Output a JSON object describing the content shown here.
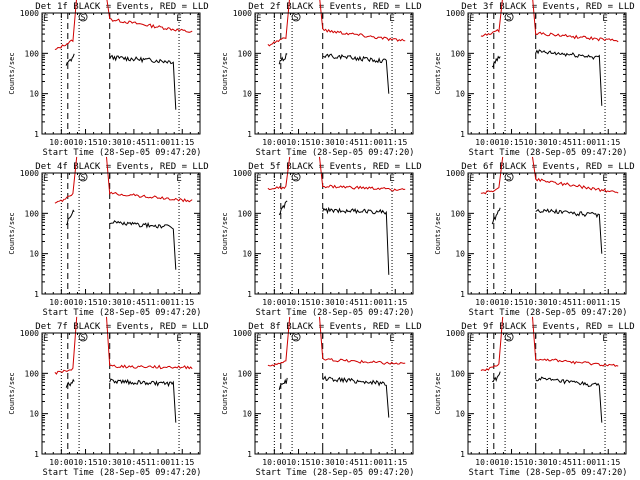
{
  "title_prefix": "Det",
  "title_suffix": "BLACK = Events, RED = LLD",
  "xlabel": "Start Time (28-Sep-05 09:47:20)",
  "ylabel": "Counts/sec",
  "x_ticks": [
    "10:00",
    "10:15",
    "10:30",
    "10:45",
    "11:00",
    "11:15"
  ],
  "y_ticks": [
    "1",
    "10",
    "100",
    "1000"
  ],
  "markers": {
    "S": "S",
    "E": "E"
  },
  "colors": {
    "events": "#000000",
    "lld": "#d00000",
    "axes": "#000000"
  },
  "chart_data": [
    {
      "type": "line",
      "title": "Det 1f BLACK = Events, RED = LLD",
      "detector": "1f",
      "xlim_min": [
        -12,
        86
      ],
      "ylim": [
        1,
        1000
      ],
      "yscale": "log",
      "pre_markers": [
        {
          "label": "E",
          "x": -12
        },
        {
          "label": "S",
          "x": 11
        }
      ],
      "post_markers": [
        {
          "label": "E",
          "x": 73
        }
      ],
      "dotted_lines_min": [
        0,
        11,
        73
      ],
      "dashed_lines_min": [
        4,
        30
      ],
      "lld": {
        "pre_start": 120,
        "pre_end": 220,
        "post_start": 700,
        "post_end": 330
      },
      "events": {
        "pre_start": 50,
        "pre_end": 95,
        "post_start": 80,
        "post_end": 62,
        "end_drop": 4
      },
      "series": [
        {
          "name": "Events",
          "color": "black"
        },
        {
          "name": "LLD",
          "color": "red"
        }
      ]
    },
    {
      "type": "line",
      "title": "Det 2f BLACK = Events, RED = LLD",
      "detector": "2f",
      "xlim_min": [
        -12,
        86
      ],
      "ylim": [
        1,
        1000
      ],
      "yscale": "log",
      "pre_markers": [
        {
          "label": "E",
          "x": -12
        },
        {
          "label": "S",
          "x": 11
        }
      ],
      "post_markers": [
        {
          "label": "E",
          "x": 73
        }
      ],
      "dotted_lines_min": [
        0,
        11,
        73
      ],
      "dashed_lines_min": [
        4,
        30
      ],
      "lld": {
        "pre_start": 160,
        "pre_end": 260,
        "post_start": 380,
        "post_end": 200
      },
      "events": {
        "pre_start": 55,
        "pre_end": 100,
        "post_start": 90,
        "post_end": 65,
        "end_drop": 10
      },
      "series": [
        {
          "name": "Events",
          "color": "black"
        },
        {
          "name": "LLD",
          "color": "red"
        }
      ]
    },
    {
      "type": "line",
      "title": "Det 3f BLACK = Events, RED = LLD",
      "detector": "3f",
      "xlim_min": [
        -12,
        86
      ],
      "ylim": [
        1,
        1000
      ],
      "yscale": "log",
      "pre_markers": [
        {
          "label": "E",
          "x": -12
        },
        {
          "label": "S",
          "x": 11
        }
      ],
      "post_markers": [
        {
          "label": "E",
          "x": 73
        }
      ],
      "dotted_lines_min": [
        0,
        11,
        73
      ],
      "dashed_lines_min": [
        4,
        30
      ],
      "lld": {
        "pre_start": 260,
        "pre_end": 380,
        "post_start": 320,
        "post_end": 200
      },
      "events": {
        "pre_start": 50,
        "pre_end": 95,
        "post_start": 110,
        "post_end": 80,
        "end_drop": 5
      },
      "series": [
        {
          "name": "Events",
          "color": "black"
        },
        {
          "name": "LLD",
          "color": "red"
        }
      ]
    },
    {
      "type": "line",
      "title": "Det 4f BLACK = Events, RED = LLD",
      "detector": "4f",
      "xlim_min": [
        -12,
        86
      ],
      "ylim": [
        1,
        1000
      ],
      "yscale": "log",
      "pre_markers": [
        {
          "label": "E",
          "x": -12
        },
        {
          "label": "S",
          "x": 11
        }
      ],
      "post_markers": [
        {
          "label": "E",
          "x": 73
        }
      ],
      "dotted_lines_min": [
        0,
        11,
        73
      ],
      "dashed_lines_min": [
        4,
        30
      ],
      "lld": {
        "pre_start": 170,
        "pre_end": 300,
        "post_start": 320,
        "post_end": 200
      },
      "events": {
        "pre_start": 55,
        "pre_end": 140,
        "post_start": 60,
        "post_end": 45,
        "end_drop": 4
      },
      "series": [
        {
          "name": "Events",
          "color": "black"
        },
        {
          "name": "LLD",
          "color": "red"
        }
      ]
    },
    {
      "type": "line",
      "title": "Det 5f BLACK = Events, RED = LLD",
      "detector": "5f",
      "xlim_min": [
        -12,
        86
      ],
      "ylim": [
        1,
        1000
      ],
      "yscale": "log",
      "pre_markers": [
        {
          "label": "E",
          "x": -12
        },
        {
          "label": "S",
          "x": 11
        }
      ],
      "post_markers": [
        {
          "label": "E",
          "x": 73
        }
      ],
      "dotted_lines_min": [
        0,
        11,
        73
      ],
      "dashed_lines_min": [
        4,
        30
      ],
      "lld": {
        "pre_start": 400,
        "pre_end": 450,
        "post_start": 470,
        "post_end": 380
      },
      "events": {
        "pre_start": 100,
        "pre_end": 200,
        "post_start": 120,
        "post_end": 110,
        "end_drop": 3
      },
      "series": [
        {
          "name": "Events",
          "color": "black"
        },
        {
          "name": "LLD",
          "color": "red"
        }
      ]
    },
    {
      "type": "line",
      "title": "Det 6f BLACK = Events, RED = LLD",
      "detector": "6f",
      "xlim_min": [
        -12,
        86
      ],
      "ylim": [
        1,
        1000
      ],
      "yscale": "log",
      "pre_markers": [
        {
          "label": "E",
          "x": -12
        },
        {
          "label": "S",
          "x": 11
        }
      ],
      "post_markers": [
        {
          "label": "E",
          "x": 73
        }
      ],
      "dotted_lines_min": [
        0,
        11,
        73
      ],
      "dashed_lines_min": [
        4,
        30
      ],
      "lld": {
        "pre_start": 300,
        "pre_end": 420,
        "post_start": 700,
        "post_end": 320
      },
      "events": {
        "pre_start": 60,
        "pre_end": 150,
        "post_start": 120,
        "post_end": 90,
        "end_drop": 10
      },
      "series": [
        {
          "name": "Events",
          "color": "black"
        },
        {
          "name": "LLD",
          "color": "red"
        }
      ]
    },
    {
      "type": "line",
      "title": "Det 7f BLACK = Events, RED = LLD",
      "detector": "7f",
      "xlim_min": [
        -12,
        86
      ],
      "ylim": [
        1,
        1000
      ],
      "yscale": "log",
      "pre_markers": [
        {
          "label": "E",
          "x": -12
        },
        {
          "label": "S",
          "x": 11
        }
      ],
      "post_markers": [
        {
          "label": "E",
          "x": 73
        }
      ],
      "dotted_lines_min": [
        0,
        11,
        73
      ],
      "dashed_lines_min": [
        4,
        30
      ],
      "lld": {
        "pre_start": 100,
        "pre_end": 130,
        "post_start": 150,
        "post_end": 140
      },
      "events": {
        "pre_start": 50,
        "pre_end": 70,
        "post_start": 65,
        "post_end": 55,
        "end_drop": 6
      },
      "series": [
        {
          "name": "Events",
          "color": "black"
        },
        {
          "name": "LLD",
          "color": "red"
        }
      ]
    },
    {
      "type": "line",
      "title": "Det 8f BLACK = Events, RED = LLD",
      "detector": "8f",
      "xlim_min": [
        -12,
        86
      ],
      "ylim": [
        1,
        1000
      ],
      "yscale": "log",
      "pre_markers": [
        {
          "label": "E",
          "x": -12
        },
        {
          "label": "S",
          "x": 11
        }
      ],
      "post_markers": [
        {
          "label": "E",
          "x": 73
        }
      ],
      "dotted_lines_min": [
        0,
        11,
        73
      ],
      "dashed_lines_min": [
        4,
        30
      ],
      "lld": {
        "pre_start": 150,
        "pre_end": 200,
        "post_start": 220,
        "post_end": 170
      },
      "events": {
        "pre_start": 45,
        "pre_end": 70,
        "post_start": 75,
        "post_end": 55,
        "end_drop": 8
      },
      "series": [
        {
          "name": "Events",
          "color": "black"
        },
        {
          "name": "LLD",
          "color": "red"
        }
      ]
    },
    {
      "type": "line",
      "title": "Det 9f BLACK = Events, RED = LLD",
      "detector": "9f",
      "xlim_min": [
        -12,
        86
      ],
      "ylim": [
        1,
        1000
      ],
      "yscale": "log",
      "pre_markers": [
        {
          "label": "E",
          "x": -12
        },
        {
          "label": "S",
          "x": 11
        }
      ],
      "post_markers": [
        {
          "label": "E",
          "x": 73
        }
      ],
      "dotted_lines_min": [
        0,
        11,
        73
      ],
      "dashed_lines_min": [
        4,
        30
      ],
      "lld": {
        "pre_start": 110,
        "pre_end": 170,
        "post_start": 230,
        "post_end": 150
      },
      "events": {
        "pre_start": 55,
        "pre_end": 110,
        "post_start": 75,
        "post_end": 50,
        "end_drop": 6
      },
      "series": [
        {
          "name": "Events",
          "color": "black"
        },
        {
          "name": "LLD",
          "color": "red"
        }
      ]
    }
  ]
}
